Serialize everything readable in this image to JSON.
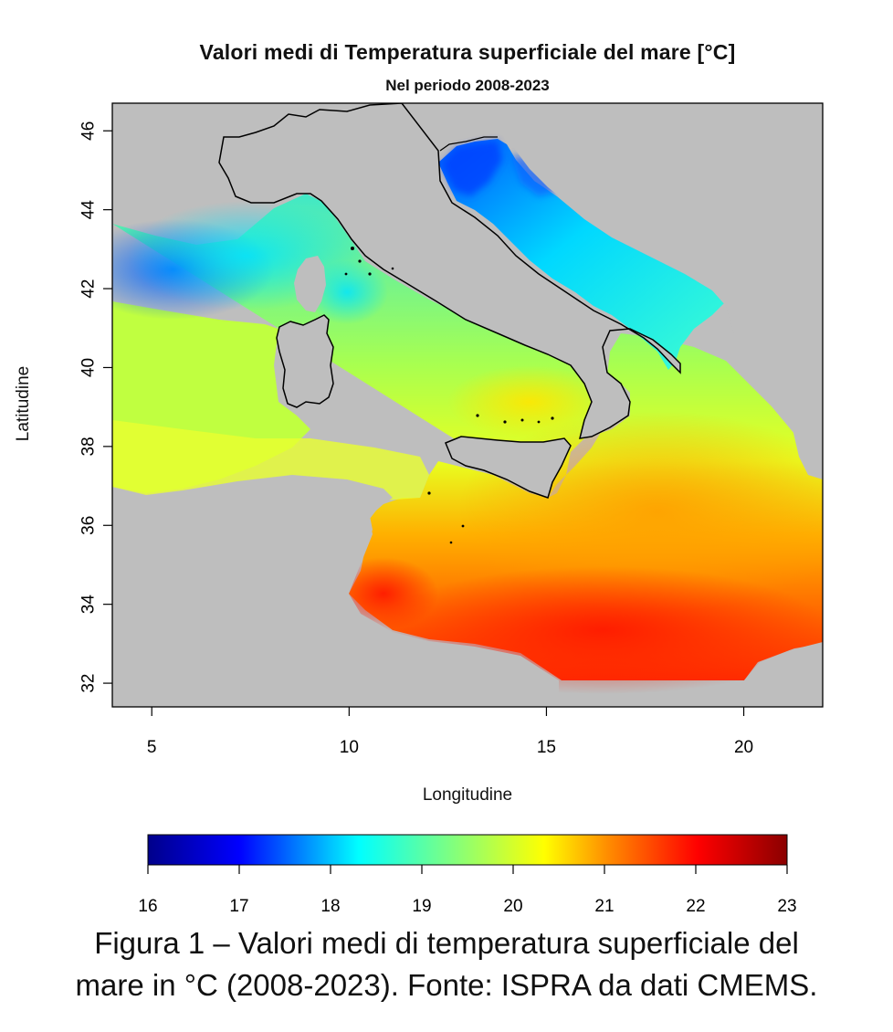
{
  "map": {
    "title": "Valori medi di Temperatura superficiale del mare [°C]",
    "subtitle": "Nel periodo 2008-2023",
    "xlabel": "Longitudine",
    "ylabel": "Latitudine",
    "xticks": [
      5,
      10,
      15,
      20
    ],
    "yticks": [
      32,
      34,
      36,
      38,
      40,
      42,
      44,
      46
    ],
    "xlim": [
      4,
      22
    ],
    "ylim": [
      31.4,
      46.7
    ],
    "land_color": "#bebebe",
    "coastline_color": "#000000"
  },
  "colorbar": {
    "ticks": [
      16,
      17,
      18,
      19,
      20,
      21,
      22,
      23
    ],
    "min": 16,
    "max": 23,
    "colors": [
      "#00008b",
      "#0000ff",
      "#00ffff",
      "#ffff00",
      "#ff8c00",
      "#ff0000",
      "#8b0000"
    ]
  },
  "caption": {
    "line1": "Figura 1 – Valori medi di temperatura superficiale del",
    "line2": "mare in °C (2008-2023). Fonte: ISPRA da dati CMEMS."
  }
}
